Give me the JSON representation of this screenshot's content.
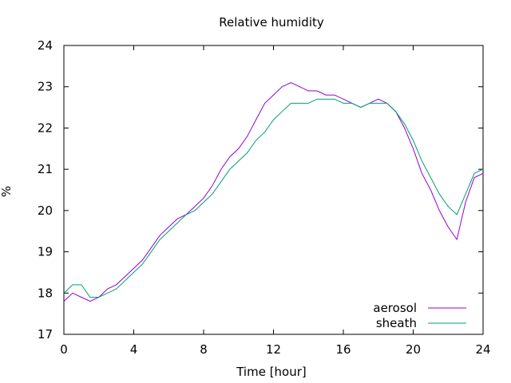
{
  "chart_data": {
    "type": "line",
    "title": "Relative humidity",
    "xlabel": "Time [hour]",
    "ylabel": "%",
    "xlim": [
      0,
      24
    ],
    "ylim": [
      17,
      24
    ],
    "xticks": [
      0,
      4,
      8,
      12,
      16,
      20,
      24
    ],
    "yticks": [
      17,
      18,
      19,
      20,
      21,
      22,
      23,
      24
    ],
    "grid": false,
    "legend_position": "bottom-right",
    "series": [
      {
        "name": "aerosol",
        "color": "#9400d3",
        "x": [
          0,
          0.5,
          1,
          1.5,
          2,
          2.5,
          3,
          3.5,
          4,
          4.5,
          5,
          5.5,
          6,
          6.5,
          7,
          7.5,
          8,
          8.5,
          9,
          9.5,
          10,
          10.5,
          11,
          11.5,
          12,
          12.5,
          13,
          13.5,
          14,
          14.5,
          15,
          15.5,
          16,
          16.5,
          17,
          17.5,
          18,
          18.5,
          19,
          19.5,
          20,
          20.5,
          21,
          21.5,
          22,
          22.5,
          23,
          23.5,
          24
        ],
        "y": [
          17.8,
          18.0,
          17.9,
          17.8,
          17.9,
          18.1,
          18.2,
          18.4,
          18.6,
          18.8,
          19.1,
          19.4,
          19.6,
          19.8,
          19.9,
          20.1,
          20.3,
          20.6,
          21.0,
          21.3,
          21.5,
          21.8,
          22.2,
          22.6,
          22.8,
          23.0,
          23.1,
          23.0,
          22.9,
          22.9,
          22.8,
          22.8,
          22.7,
          22.6,
          22.5,
          22.6,
          22.7,
          22.6,
          22.4,
          22.0,
          21.5,
          20.9,
          20.5,
          20.0,
          19.6,
          19.3,
          20.2,
          20.8,
          20.9
        ]
      },
      {
        "name": "sheath",
        "color": "#009e73",
        "x": [
          0,
          0.5,
          1,
          1.5,
          2,
          2.5,
          3,
          3.5,
          4,
          4.5,
          5,
          5.5,
          6,
          6.5,
          7,
          7.5,
          8,
          8.5,
          9,
          9.5,
          10,
          10.5,
          11,
          11.5,
          12,
          12.5,
          13,
          13.5,
          14,
          14.5,
          15,
          15.5,
          16,
          16.5,
          17,
          17.5,
          18,
          18.5,
          19,
          19.5,
          20,
          20.5,
          21,
          21.5,
          22,
          22.5,
          23,
          23.5,
          24
        ],
        "y": [
          18.0,
          18.2,
          18.2,
          17.9,
          17.9,
          18.0,
          18.1,
          18.3,
          18.5,
          18.7,
          19.0,
          19.3,
          19.5,
          19.7,
          19.9,
          20.0,
          20.2,
          20.4,
          20.7,
          21.0,
          21.2,
          21.4,
          21.7,
          21.9,
          22.2,
          22.4,
          22.6,
          22.6,
          22.6,
          22.7,
          22.7,
          22.7,
          22.6,
          22.6,
          22.5,
          22.6,
          22.6,
          22.6,
          22.4,
          22.1,
          21.7,
          21.2,
          20.8,
          20.4,
          20.1,
          19.9,
          20.4,
          20.9,
          21.0
        ]
      }
    ]
  }
}
